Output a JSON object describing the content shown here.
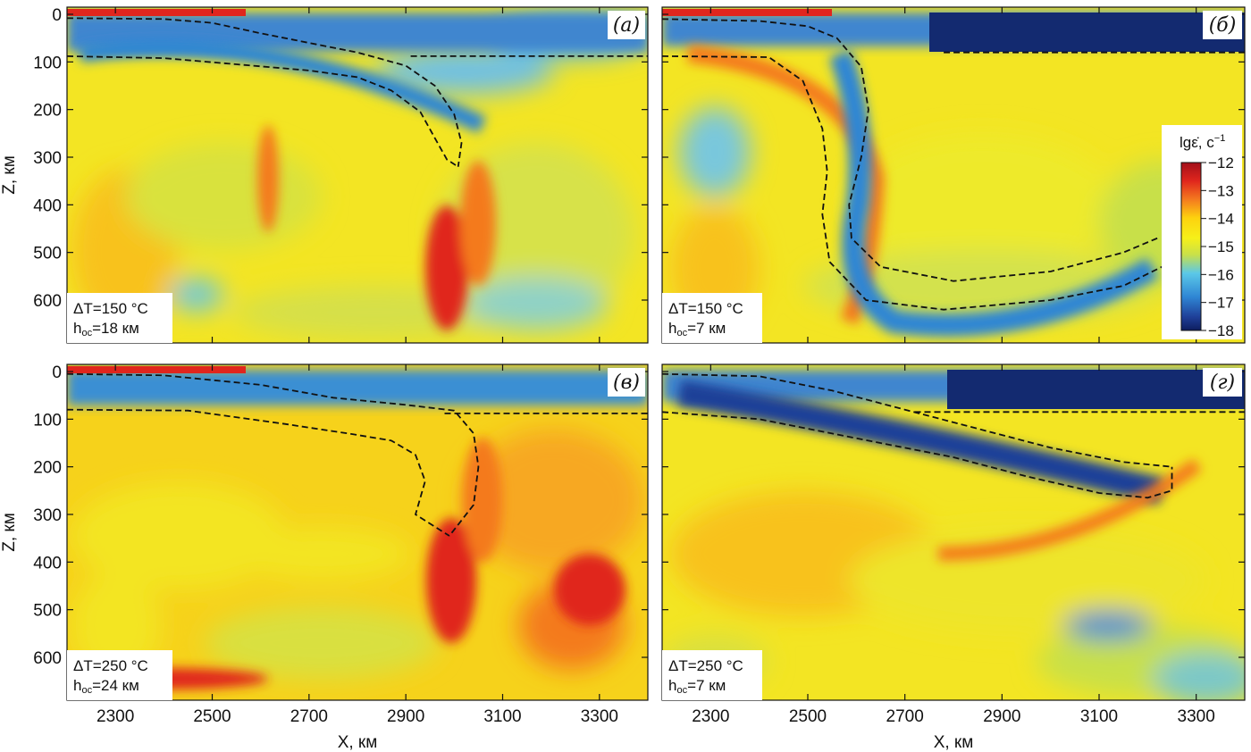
{
  "chart_data": {
    "type": "heatmap",
    "panels": [
      {
        "id": "a",
        "label": "(а)",
        "info_lines": [
          {
            "main": "ΔT=150 °C",
            "sub": "",
            "tail": ""
          },
          {
            "main": "h",
            "sub": "oc",
            "tail": "=18 км"
          }
        ],
        "xlim": [
          2200,
          3400
        ],
        "ylim": [
          0,
          690
        ],
        "x_ticks": [
          2300,
          2500,
          2700,
          2900,
          3100,
          3300
        ],
        "y_ticks": [
          0,
          100,
          200,
          300,
          400,
          500,
          600
        ],
        "show_xticklabels": false,
        "show_yticklabels": true,
        "ylabel": "Z, км",
        "xlabel": "",
        "slab_top": [
          [
            2200,
            8
          ],
          [
            2400,
            10
          ],
          [
            2500,
            18
          ],
          [
            2600,
            40
          ],
          [
            2700,
            60
          ],
          [
            2800,
            80
          ],
          [
            2900,
            108
          ],
          [
            2960,
            150
          ],
          [
            3000,
            210
          ],
          [
            3015,
            270
          ],
          [
            3008,
            320
          ]
        ],
        "slab_bottom": [
          [
            2200,
            88
          ],
          [
            2400,
            92
          ],
          [
            2550,
            105
          ],
          [
            2700,
            118
          ],
          [
            2800,
            132
          ],
          [
            2870,
            160
          ],
          [
            2930,
            205
          ],
          [
            2960,
            260
          ],
          [
            2985,
            305
          ],
          [
            3008,
            320
          ]
        ],
        "moho": [
          [
            2910,
            88
          ],
          [
            3400,
            88
          ]
        ]
      },
      {
        "id": "b",
        "label": "(б)",
        "info_lines": [
          {
            "main": "ΔT=150 °C",
            "sub": "",
            "tail": ""
          },
          {
            "main": "h",
            "sub": "oc",
            "tail": "=7 км"
          }
        ],
        "xlim": [
          2200,
          3400
        ],
        "ylim": [
          0,
          690
        ],
        "x_ticks": [
          2300,
          2500,
          2700,
          2900,
          3100,
          3300
        ],
        "y_ticks": [
          0,
          100,
          200,
          300,
          400,
          500,
          600
        ],
        "show_xticklabels": false,
        "show_yticklabels": false,
        "ylabel": "",
        "xlabel": "",
        "slab_top": [
          [
            2200,
            10
          ],
          [
            2400,
            14
          ],
          [
            2500,
            25
          ],
          [
            2560,
            50
          ],
          [
            2610,
            110
          ],
          [
            2625,
            200
          ],
          [
            2610,
            300
          ],
          [
            2585,
            400
          ],
          [
            2590,
            470
          ],
          [
            2650,
            530
          ],
          [
            2800,
            560
          ],
          [
            3000,
            540
          ],
          [
            3150,
            500
          ],
          [
            3220,
            470
          ]
        ],
        "slab_bottom": [
          [
            2200,
            88
          ],
          [
            2420,
            90
          ],
          [
            2490,
            140
          ],
          [
            2530,
            240
          ],
          [
            2540,
            330
          ],
          [
            2530,
            420
          ],
          [
            2545,
            520
          ],
          [
            2620,
            600
          ],
          [
            2780,
            620
          ],
          [
            3000,
            600
          ],
          [
            3150,
            570
          ],
          [
            3250,
            520
          ],
          [
            3230,
            470
          ]
        ],
        "moho": [
          [
            2780,
            80
          ],
          [
            3400,
            80
          ]
        ]
      },
      {
        "id": "c",
        "label": "(в)",
        "info_lines": [
          {
            "main": "ΔT=250 °C",
            "sub": "",
            "tail": ""
          },
          {
            "main": "h",
            "sub": "oc",
            "tail": "=24 км"
          }
        ],
        "xlim": [
          2200,
          3400
        ],
        "ylim": [
          0,
          690
        ],
        "x_ticks": [
          2300,
          2500,
          2700,
          2900,
          3100,
          3300
        ],
        "y_ticks": [
          0,
          100,
          200,
          300,
          400,
          500,
          600
        ],
        "show_xticklabels": true,
        "show_yticklabels": true,
        "ylabel": "Z, км",
        "xlabel": "X, км",
        "slab_top": [
          [
            2200,
            5
          ],
          [
            2400,
            8
          ],
          [
            2600,
            28
          ],
          [
            2750,
            55
          ],
          [
            2900,
            70
          ],
          [
            3000,
            82
          ],
          [
            3040,
            130
          ],
          [
            3050,
            200
          ],
          [
            3040,
            280
          ],
          [
            2990,
            345
          ]
        ],
        "slab_bottom": [
          [
            2200,
            80
          ],
          [
            2450,
            82
          ],
          [
            2650,
            110
          ],
          [
            2780,
            130
          ],
          [
            2870,
            145
          ],
          [
            2920,
            175
          ],
          [
            2940,
            230
          ],
          [
            2920,
            300
          ],
          [
            2990,
            345
          ]
        ],
        "moho": [
          [
            2980,
            88
          ],
          [
            3400,
            88
          ]
        ]
      },
      {
        "id": "d",
        "label": "(г)",
        "info_lines": [
          {
            "main": "ΔT=250 °C",
            "sub": "",
            "tail": ""
          },
          {
            "main": "h",
            "sub": "oc",
            "tail": "=7 км"
          }
        ],
        "xlim": [
          2200,
          3400
        ],
        "ylim": [
          0,
          690
        ],
        "x_ticks": [
          2300,
          2500,
          2700,
          2900,
          3100,
          3300
        ],
        "y_ticks": [
          0,
          100,
          200,
          300,
          400,
          500,
          600
        ],
        "show_xticklabels": true,
        "show_yticklabels": false,
        "ylabel": "",
        "xlabel": "X, км",
        "slab_top": [
          [
            2200,
            5
          ],
          [
            2400,
            10
          ],
          [
            2550,
            40
          ],
          [
            2700,
            80
          ],
          [
            2850,
            120
          ],
          [
            3000,
            160
          ],
          [
            3150,
            190
          ],
          [
            3250,
            200
          ]
        ],
        "slab_bottom": [
          [
            2200,
            85
          ],
          [
            2400,
            100
          ],
          [
            2600,
            140
          ],
          [
            2800,
            180
          ],
          [
            2950,
            220
          ],
          [
            3100,
            255
          ],
          [
            3200,
            265
          ],
          [
            3250,
            250
          ],
          [
            3250,
            200
          ]
        ],
        "moho": [
          [
            2720,
            85
          ],
          [
            3400,
            85
          ]
        ]
      }
    ],
    "colorbar": {
      "title_main": "lgε̇, c",
      "title_sup": "−1",
      "min": -18,
      "max": -12,
      "ticks": [
        -12,
        -13,
        -14,
        -15,
        -16,
        -17,
        -18
      ],
      "tick_labels": [
        "−12",
        "−13",
        "−14",
        "−15",
        "−16",
        "−17",
        "−18"
      ],
      "colormap": [
        "#a30f1a",
        "#e0261d",
        "#f47a1f",
        "#fdd20e",
        "#f6f019",
        "#c8e04a",
        "#5bc8e8",
        "#2f86d4",
        "#1f3f98",
        "#0d1d5f"
      ]
    }
  }
}
